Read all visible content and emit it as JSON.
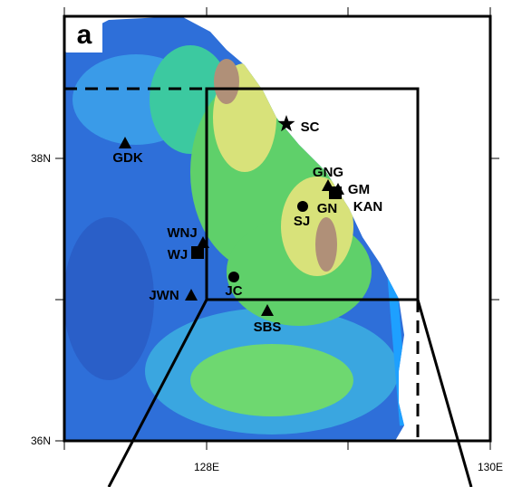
{
  "panel_label": "a",
  "axes": {
    "lat_ticks": [
      "38N",
      "36N"
    ],
    "lon_ticks": [
      "128E",
      "130E"
    ]
  },
  "stations": [
    "GDK",
    "SC",
    "GNG",
    "GM",
    "KAN",
    "GN",
    "SJ",
    "WNJ",
    "WJ",
    "JC",
    "JWN",
    "SBS"
  ]
}
